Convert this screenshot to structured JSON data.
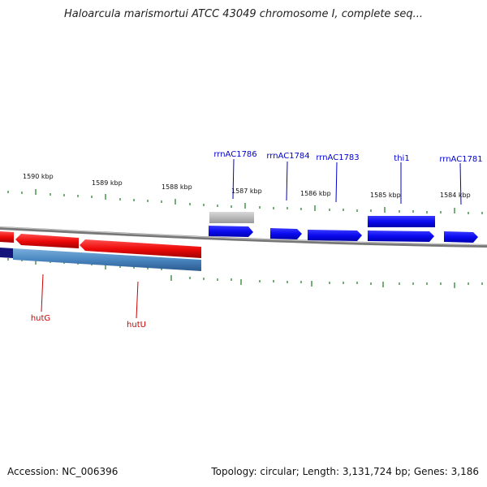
{
  "title": "Haloarcula marismortui ATCC 43049 chromosome I, complete seq...",
  "footer": {
    "accession": "Accession: NC_006396",
    "summary": "Topology: circular; Length: 3,131,724 bp; Genes: 3,186"
  },
  "colors": {
    "forward_gene": "#1010ee",
    "reverse_gene": "#ee1010",
    "rna_gene": "#b8b8b8",
    "reverse_blue": "#4a86c0",
    "backbone": "#888888",
    "tick": "#1a7a1a",
    "forward_label": "#0000cc",
    "reverse_label": "#cc0000"
  },
  "scale_labels": [
    "1590 kbp",
    "1589 kbp",
    "1588 kbp",
    "1587 kbp",
    "1586 kbp",
    "1585 kbp",
    "1584 kbp"
  ],
  "forward_labels": [
    "rrnAC1786",
    "rrnAC1784",
    "rrnAC1783",
    "thi1",
    "rrnAC1781"
  ],
  "reverse_labels": [
    "hutG",
    "hutU"
  ]
}
